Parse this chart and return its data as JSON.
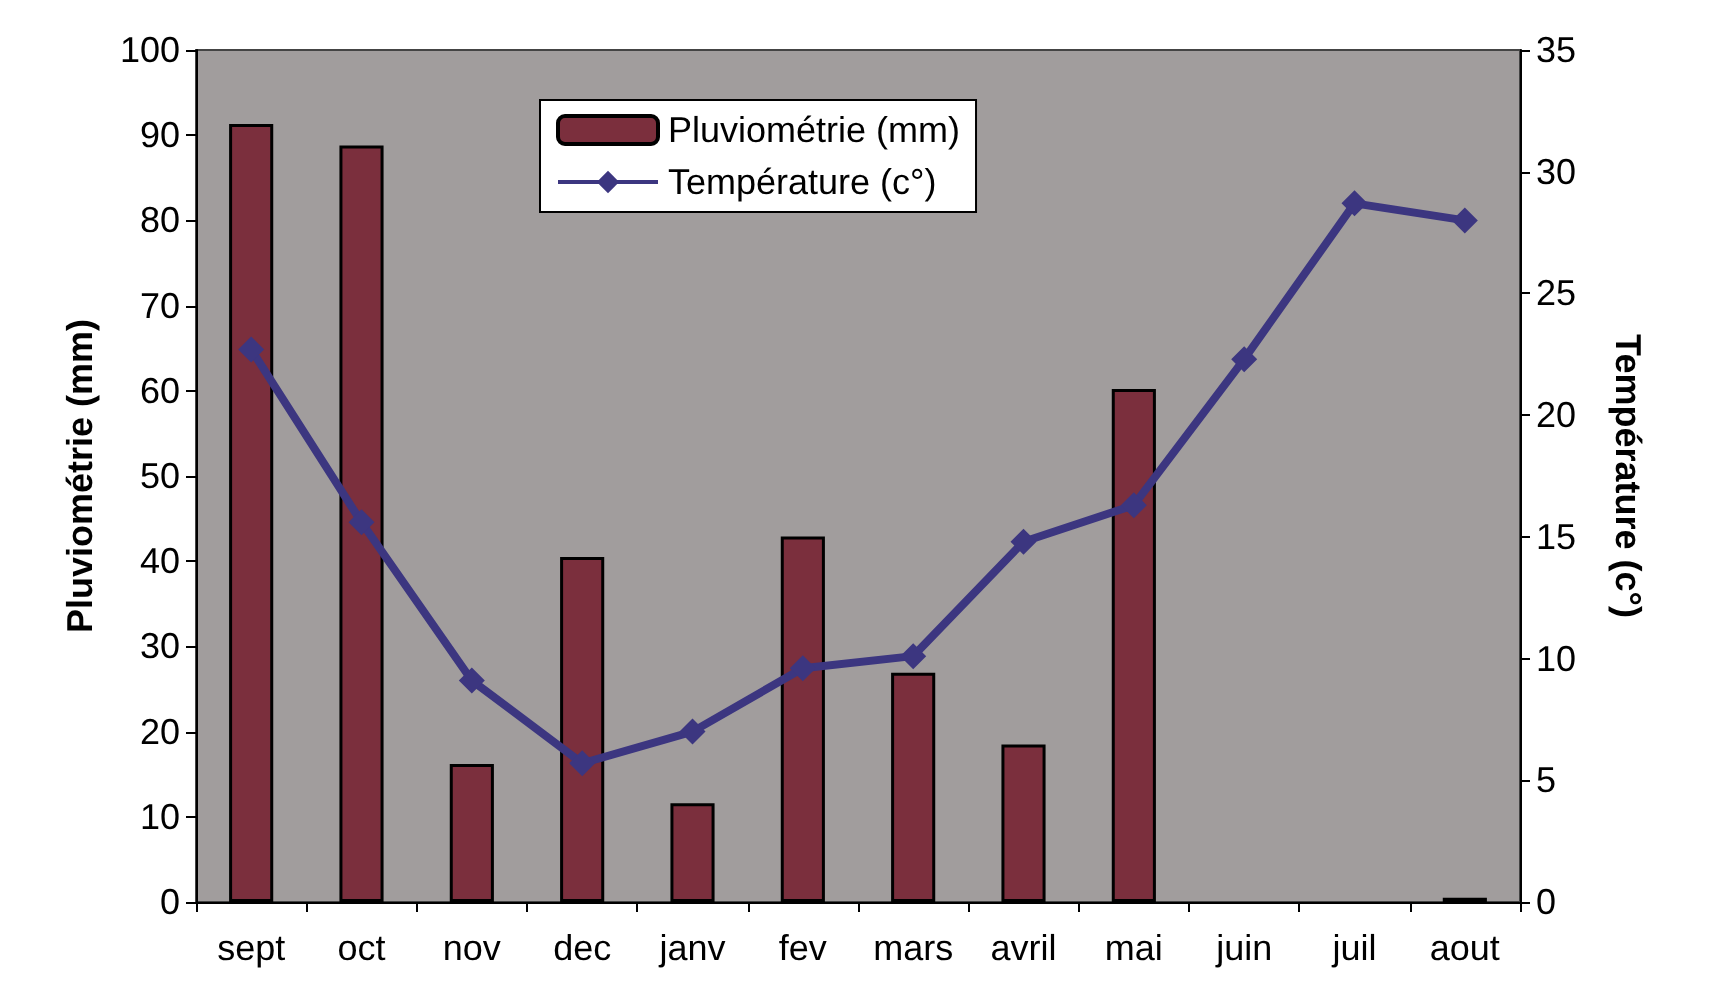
{
  "chart_data": {
    "type": "bar",
    "ylabel": "Pluviométrie (mm)",
    "y2label": "Température (c°)",
    "categories": [
      "sept",
      "oct",
      "nov",
      "dec",
      "janv",
      "fev",
      "mars",
      "avril",
      "mai",
      "juin",
      "juil",
      "aout"
    ],
    "series": [
      {
        "name": "Pluviométrie (mm)",
        "color": "#7b2f3d",
        "values": [
          91.3,
          88.8,
          16.2,
          40.5,
          11.6,
          42.9,
          26.9,
          18.5,
          60.2,
          null,
          null,
          0.5
        ]
      },
      {
        "name": "Température (c°)",
        "type": "line",
        "axis": "y2",
        "color": "#3c3680",
        "marker": "diamond",
        "values": [
          22.7,
          15.6,
          9.1,
          5.7,
          7.0,
          9.6,
          10.1,
          14.8,
          16.3,
          22.3,
          28.7,
          28.0
        ]
      }
    ],
    "ylim": [
      0,
      100
    ],
    "yticks": [
      0,
      10,
      20,
      30,
      40,
      50,
      60,
      70,
      80,
      90,
      100
    ],
    "y2lim": [
      0,
      35
    ],
    "y2ticks": [
      0,
      5,
      10,
      15,
      20,
      25,
      30,
      35
    ],
    "grid": false,
    "legend": "top"
  }
}
